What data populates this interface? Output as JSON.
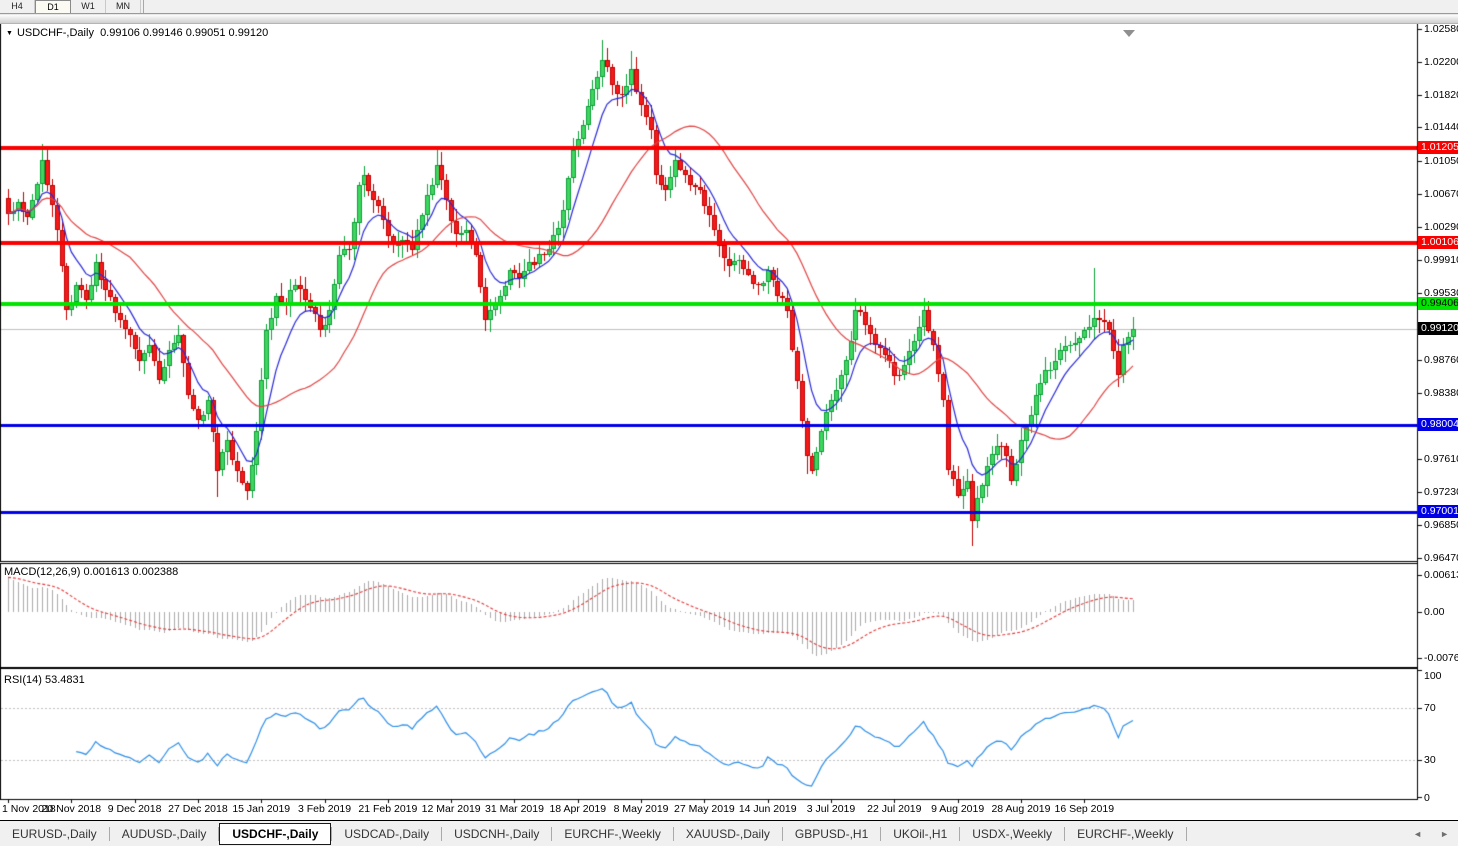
{
  "toolbar": {
    "periods": [
      {
        "label": "H4",
        "active": false
      },
      {
        "label": "D1",
        "active": true
      },
      {
        "label": "W1",
        "active": false
      },
      {
        "label": "MN",
        "active": false
      }
    ]
  },
  "header": {
    "symbol": "USDCHF-,Daily",
    "ohlc_text": "0.99106 0.99146 0.99051 0.99120"
  },
  "price_axis": {
    "ticks": [
      "1.02580",
      "1.02200",
      "1.01820",
      "1.01440",
      "1.01050",
      "1.00670",
      "1.00290",
      "0.99910",
      "0.99530",
      "0.98760",
      "0.98380",
      "0.97610",
      "0.97230",
      "0.96850",
      "0.96470"
    ]
  },
  "chart_data": {
    "type": "candlestick",
    "symbol": "USDCHF",
    "timeframe": "Daily",
    "ohlc_display": {
      "open": "0.99106",
      "high": "0.99146",
      "low": "0.99051",
      "close": "0.99120"
    },
    "x_labels": [
      "1 Nov 2018",
      "20 Nov 2018",
      "9 Dec 2018",
      "27 Dec 2018",
      "15 Jan 2019",
      "3 Feb 2019",
      "21 Feb 2019",
      "12 Mar 2019",
      "31 Mar 2019",
      "18 Apr 2019",
      "8 May 2019",
      "27 May 2019",
      "14 Jun 2019",
      "3 Jul 2019",
      "22 Jul 2019",
      "9 Aug 2019",
      "28 Aug 2019",
      "16 Sep 2019"
    ],
    "candles_per_label": 13,
    "n_candles": 232,
    "ylim": [
      0.9645,
      1.02645
    ],
    "seed": 11,
    "noise": 0.0013,
    "close_anchors": [
      [
        0,
        1.0045
      ],
      [
        2,
        1.0058
      ],
      [
        4,
        1.004
      ],
      [
        7,
        1.0107
      ],
      [
        8,
        1.0078
      ],
      [
        10,
        1.0026
      ],
      [
        12,
        0.9933
      ],
      [
        14,
        0.9962
      ],
      [
        16,
        0.9945
      ],
      [
        18,
        0.9989
      ],
      [
        20,
        0.9956
      ],
      [
        23,
        0.9922
      ],
      [
        25,
        0.9904
      ],
      [
        27,
        0.9875
      ],
      [
        29,
        0.9893
      ],
      [
        31,
        0.9852
      ],
      [
        33,
        0.9887
      ],
      [
        35,
        0.9904
      ],
      [
        37,
        0.9835
      ],
      [
        39,
        0.9806
      ],
      [
        41,
        0.9829
      ],
      [
        43,
        0.9748
      ],
      [
        45,
        0.9783
      ],
      [
        47,
        0.9748
      ],
      [
        49,
        0.9725
      ],
      [
        51,
        0.9794
      ],
      [
        53,
        0.991
      ],
      [
        55,
        0.995
      ],
      [
        57,
        0.9939
      ],
      [
        59,
        0.9962
      ],
      [
        61,
        0.9945
      ],
      [
        64,
        0.991
      ],
      [
        66,
        0.9933
      ],
      [
        68,
        0.9997
      ],
      [
        70,
        1.0003
      ],
      [
        72,
        1.0078
      ],
      [
        73,
        1.0089
      ],
      [
        75,
        1.006
      ],
      [
        77,
        1.0037
      ],
      [
        79,
        1.0008
      ],
      [
        81,
        1.0014
      ],
      [
        83,
        1.0003
      ],
      [
        85,
        1.0043
      ],
      [
        87,
        1.0078
      ],
      [
        88,
        1.0101
      ],
      [
        90,
        1.006
      ],
      [
        92,
        1.002
      ],
      [
        94,
        1.0026
      ],
      [
        96,
        0.9997
      ],
      [
        98,
        0.9922
      ],
      [
        99,
        0.9933
      ],
      [
        101,
        0.995
      ],
      [
        103,
        0.9979
      ],
      [
        105,
        0.997
      ],
      [
        107,
        0.9989
      ],
      [
        110,
        0.9997
      ],
      [
        112,
        1.002
      ],
      [
        114,
        1.0049
      ],
      [
        116,
        1.0118
      ],
      [
        118,
        1.0147
      ],
      [
        120,
        1.0188
      ],
      [
        122,
        1.0222
      ],
      [
        124,
        1.0193
      ],
      [
        126,
        1.0182
      ],
      [
        128,
        1.0211
      ],
      [
        130,
        1.017
      ],
      [
        132,
        1.0141
      ],
      [
        133,
        1.0089
      ],
      [
        135,
        1.0072
      ],
      [
        137,
        1.0107
      ],
      [
        138,
        1.0095
      ],
      [
        140,
        1.0078
      ],
      [
        142,
        1.0072
      ],
      [
        144,
        1.0043
      ],
      [
        146,
        1.0008
      ],
      [
        148,
        0.9985
      ],
      [
        150,
        0.9991
      ],
      [
        152,
        0.9974
      ],
      [
        154,
        0.9962
      ],
      [
        156,
        0.9979
      ],
      [
        158,
        0.995
      ],
      [
        160,
        0.9933
      ],
      [
        162,
        0.9852
      ],
      [
        164,
        0.9765
      ],
      [
        165,
        0.9748
      ],
      [
        167,
        0.9794
      ],
      [
        169,
        0.9829
      ],
      [
        171,
        0.9858
      ],
      [
        173,
        0.9898
      ],
      [
        174,
        0.9933
      ],
      [
        176,
        0.9916
      ],
      [
        178,
        0.9893
      ],
      [
        180,
        0.9881
      ],
      [
        182,
        0.9858
      ],
      [
        184,
        0.987
      ],
      [
        186,
        0.9898
      ],
      [
        188,
        0.9933
      ],
      [
        190,
        0.9893
      ],
      [
        192,
        0.9829
      ],
      [
        193,
        0.9748
      ],
      [
        195,
        0.9719
      ],
      [
        197,
        0.9736
      ],
      [
        198,
        0.969
      ],
      [
        200,
        0.9731
      ],
      [
        201,
        0.9754
      ],
      [
        203,
        0.9777
      ],
      [
        205,
        0.9765
      ],
      [
        206,
        0.9736
      ],
      [
        208,
        0.9783
      ],
      [
        210,
        0.9812
      ],
      [
        211,
        0.9835
      ],
      [
        213,
        0.9864
      ],
      [
        215,
        0.9875
      ],
      [
        216,
        0.9887
      ],
      [
        218,
        0.9893
      ],
      [
        220,
        0.9901
      ],
      [
        221,
        0.991
      ],
      [
        223,
        0.9924
      ],
      [
        225,
        0.9919
      ],
      [
        226,
        0.991
      ],
      [
        228,
        0.9858
      ],
      [
        229,
        0.9893
      ],
      [
        231,
        0.9912
      ]
    ],
    "wick_events": [
      {
        "i": 7,
        "high": 1.0125
      },
      {
        "i": 43,
        "low": 0.9718
      },
      {
        "i": 88,
        "high": 1.0122
      },
      {
        "i": 122,
        "high": 1.0245
      },
      {
        "i": 128,
        "high": 1.0232
      },
      {
        "i": 164,
        "low": 0.9744
      },
      {
        "i": 198,
        "low": 0.9662
      },
      {
        "i": 223,
        "high": 0.9982
      },
      {
        "i": 228,
        "low": 0.9845
      }
    ],
    "hlines": [
      {
        "price": 1.01205,
        "label": "1.01205",
        "color": "#fa0000",
        "thickness": 4,
        "badge_fg": "#ffffff"
      },
      {
        "price": 1.00106,
        "label": "1.00106",
        "color": "#fa0000",
        "thickness": 4,
        "badge_fg": "#ffffff"
      },
      {
        "price": 0.99406,
        "label": "0.99406",
        "color": "#00e400",
        "thickness": 4,
        "badge_fg": "#000000"
      },
      {
        "price": 0.98004,
        "label": "0.98004",
        "color": "#0000e8",
        "thickness": 3,
        "badge_fg": "#ffffff"
      },
      {
        "price": 0.97001,
        "label": "0.97001",
        "color": "#0000e8",
        "thickness": 3,
        "badge_fg": "#ffffff"
      }
    ],
    "current_price": {
      "label": "0.99120",
      "price": 0.9912,
      "line_color": "#c0c0c0",
      "badge_bg": "#000000",
      "badge_fg": "#ffffff"
    },
    "indicators": {
      "ma_fast": {
        "name": "MA fast",
        "period": 8,
        "method": "ema",
        "color": "#2a2ad8"
      },
      "ma_slow": {
        "name": "MA slow",
        "period": 26,
        "method": "sma",
        "color": "#e04545"
      },
      "macd": {
        "display": "MACD(12,26,9) 0.001613 0.002388",
        "fast": 12,
        "slow": 26,
        "signal": 9,
        "value": 0.001613,
        "signal_value": 0.002388,
        "axis_ticks": [
          {
            "label": "0.00613",
            "value": 0.00613
          },
          {
            "label": "0.00",
            "value": 0.0
          },
          {
            "label": "-0.00761",
            "value": -0.00761
          }
        ],
        "ylim": [
          -0.00761,
          0.00613
        ],
        "hist_color": "#ababab",
        "signal_color": "#e03b3b"
      },
      "rsi": {
        "display": "RSI(14) 53.4831",
        "period": 14,
        "value": 53.4831,
        "levels": [
          70,
          30
        ],
        "axis_ticks": [
          {
            "label": "100",
            "value": 100
          },
          {
            "label": "70",
            "value": 70
          },
          {
            "label": "30",
            "value": 30
          },
          {
            "label": "0",
            "value": 0
          }
        ],
        "ylim": [
          0,
          100
        ],
        "color": "#2e8fe8",
        "level_color": "#c0c0c0"
      }
    },
    "colors": {
      "up_fill": "#3fd55f",
      "up_edge": "#0ca138",
      "down_fill": "#f21b1b",
      "down_edge": "#c40000",
      "background": "#ffffff",
      "border": "#000000"
    }
  },
  "tabs": {
    "items": [
      {
        "label": "EURUSD-,Daily",
        "active": false
      },
      {
        "label": "AUDUSD-,Daily",
        "active": false
      },
      {
        "label": "USDCHF-,Daily",
        "active": true
      },
      {
        "label": "USDCAD-,Daily",
        "active": false
      },
      {
        "label": "USDCNH-,Daily",
        "active": false
      },
      {
        "label": "EURCHF-,Weekly",
        "active": false
      },
      {
        "label": "XAUUSD-,Daily",
        "active": false
      },
      {
        "label": "GBPUSD-,H1",
        "active": false
      },
      {
        "label": "UKOil-,H1",
        "active": false
      },
      {
        "label": "USDX-,Weekly",
        "active": false
      },
      {
        "label": "EURCHF-,Weekly",
        "active": false
      }
    ],
    "left_arrow": "◄",
    "right_arrow": "►"
  }
}
